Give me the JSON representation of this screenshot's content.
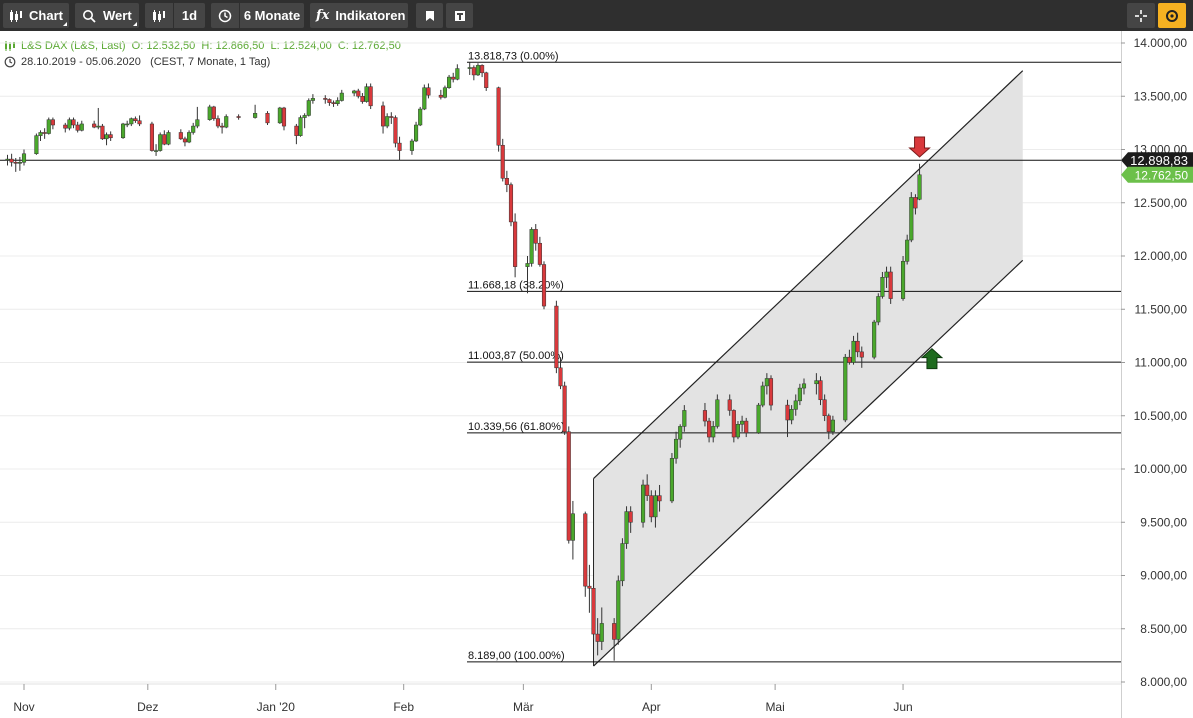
{
  "toolbar": {
    "chart_label": "Chart",
    "value_label": "Wert",
    "interval_label": "1d",
    "range_label": "6 Monate",
    "indicators_label": "Indikatoren"
  },
  "info": {
    "instrument": "L&S DAX (L&S, Last)",
    "open": "O: 12.532,50",
    "high": "H: 12.866,50",
    "low": "L: 12.524,00",
    "close": "C: 12.762,50",
    "date_range": "28.10.2019 - 05.06.2020",
    "timezone": "(CEST, 7 Monate, 1 Tag)"
  },
  "colors": {
    "toolbar_bg": "#2f2f2f",
    "button_bg": "#454545",
    "bull": "#4aa82c",
    "bear": "#d9393c",
    "info_text": "#5aa832",
    "accent": "#f5b121",
    "last_price_bg": "#1c1c1c",
    "close_price_bg": "#6cc04a",
    "channel_fill": "#e3e3e3"
  },
  "chart_data": {
    "type": "candlestick",
    "y_ticks": [
      "14.000,00",
      "13.500,00",
      "13.000,00",
      "12.500,00",
      "12.000,00",
      "11.500,00",
      "11.000,00",
      "10.500,00",
      "10.000,00",
      "9.500,00",
      "9.000,00",
      "8.500,00",
      "8.000,00"
    ],
    "y_tick_values": [
      14000,
      13500,
      13000,
      12500,
      12000,
      11500,
      11000,
      10500,
      10000,
      9500,
      9000,
      8500,
      8000
    ],
    "ylim": [
      7900,
      14050
    ],
    "x_labels": [
      {
        "label": "Nov",
        "date": "2019-11-01"
      },
      {
        "label": "Dez",
        "date": "2019-12-01"
      },
      {
        "label": "Jan '20",
        "date": "2020-01-01"
      },
      {
        "label": "Feb",
        "date": "2020-02-01"
      },
      {
        "label": "Mär",
        "date": "2020-03-01"
      },
      {
        "label": "Apr",
        "date": "2020-04-01"
      },
      {
        "label": "Mai",
        "date": "2020-05-01"
      },
      {
        "label": "Jun",
        "date": "2020-06-01"
      }
    ],
    "candles": [
      [
        "2019-10-28",
        12900,
        12950,
        12850,
        12910
      ],
      [
        "2019-10-29",
        12910,
        12960,
        12840,
        12880
      ],
      [
        "2019-10-30",
        12880,
        12920,
        12790,
        12870
      ],
      [
        "2019-10-31",
        12870,
        12930,
        12800,
        12880
      ],
      [
        "2019-11-01",
        12880,
        13000,
        12850,
        12960
      ],
      [
        "2019-11-04",
        12960,
        13150,
        12950,
        13130
      ],
      [
        "2019-11-05",
        13130,
        13180,
        13080,
        13160
      ],
      [
        "2019-11-06",
        13160,
        13200,
        13100,
        13150
      ],
      [
        "2019-11-07",
        13150,
        13300,
        13140,
        13280
      ],
      [
        "2019-11-08",
        13280,
        13300,
        13190,
        13230
      ],
      [
        "2019-11-11",
        13230,
        13250,
        13160,
        13200
      ],
      [
        "2019-11-12",
        13200,
        13300,
        13180,
        13280
      ],
      [
        "2019-11-13",
        13280,
        13300,
        13200,
        13230
      ],
      [
        "2019-11-14",
        13230,
        13260,
        13160,
        13180
      ],
      [
        "2019-11-15",
        13180,
        13270,
        13170,
        13240
      ],
      [
        "2019-11-18",
        13240,
        13270,
        13200,
        13210
      ],
      [
        "2019-11-19",
        13210,
        13390,
        13190,
        13220
      ],
      [
        "2019-11-20",
        13220,
        13240,
        13090,
        13100
      ],
      [
        "2019-11-21",
        13100,
        13160,
        13040,
        13140
      ],
      [
        "2019-11-22",
        13140,
        13170,
        13080,
        13110
      ],
      [
        "2019-11-25",
        13110,
        13250,
        13100,
        13240
      ],
      [
        "2019-11-26",
        13240,
        13270,
        13210,
        13240
      ],
      [
        "2019-11-27",
        13240,
        13300,
        13220,
        13290
      ],
      [
        "2019-11-28",
        13290,
        13310,
        13250,
        13270
      ],
      [
        "2019-11-29",
        13270,
        13320,
        13220,
        13240
      ],
      [
        "2019-12-02",
        13240,
        13260,
        12980,
        12990
      ],
      [
        "2019-12-03",
        12990,
        13050,
        12940,
        12990
      ],
      [
        "2019-12-04",
        12990,
        13160,
        12980,
        13140
      ],
      [
        "2019-12-05",
        13140,
        13180,
        13040,
        13050
      ],
      [
        "2019-12-06",
        13050,
        13180,
        13040,
        13160
      ],
      [
        "2019-12-09",
        13160,
        13190,
        13090,
        13100
      ],
      [
        "2019-12-10",
        13100,
        13120,
        13030,
        13070
      ],
      [
        "2019-12-11",
        13070,
        13180,
        13060,
        13160
      ],
      [
        "2019-12-12",
        13160,
        13250,
        13140,
        13220
      ],
      [
        "2019-12-13",
        13220,
        13400,
        13200,
        13280
      ],
      [
        "2019-12-16",
        13280,
        13420,
        13270,
        13400
      ],
      [
        "2019-12-17",
        13400,
        13410,
        13270,
        13290
      ],
      [
        "2019-12-18",
        13290,
        13320,
        13200,
        13220
      ],
      [
        "2019-12-19",
        13220,
        13250,
        13150,
        13210
      ],
      [
        "2019-12-20",
        13210,
        13330,
        13200,
        13310
      ],
      [
        "2019-12-23",
        13310,
        13330,
        13280,
        13300
      ],
      [
        "2019-12-27",
        13300,
        13420,
        13290,
        13340
      ],
      [
        "2019-12-30",
        13340,
        13360,
        13230,
        13250
      ],
      [
        "2020-01-02",
        13250,
        13400,
        13240,
        13390
      ],
      [
        "2020-01-03",
        13390,
        13400,
        13180,
        13220
      ],
      [
        "2020-01-06",
        13220,
        13240,
        13050,
        13130
      ],
      [
        "2020-01-07",
        13130,
        13320,
        13120,
        13300
      ],
      [
        "2020-01-08",
        13300,
        13340,
        13200,
        13320
      ],
      [
        "2020-01-09",
        13320,
        13480,
        13310,
        13460
      ],
      [
        "2020-01-10",
        13460,
        13520,
        13430,
        13480
      ],
      [
        "2020-01-13",
        13480,
        13510,
        13430,
        13470
      ],
      [
        "2020-01-14",
        13470,
        13480,
        13410,
        13440
      ],
      [
        "2020-01-15",
        13440,
        13460,
        13400,
        13430
      ],
      [
        "2020-01-16",
        13430,
        13490,
        13410,
        13460
      ],
      [
        "2020-01-17",
        13460,
        13560,
        13450,
        13530
      ],
      [
        "2020-01-20",
        13530,
        13560,
        13500,
        13550
      ],
      [
        "2020-01-21",
        13550,
        13570,
        13480,
        13500
      ],
      [
        "2020-01-22",
        13500,
        13530,
        13430,
        13450
      ],
      [
        "2020-01-23",
        13450,
        13620,
        13440,
        13590
      ],
      [
        "2020-01-24",
        13590,
        13620,
        13380,
        13410
      ],
      [
        "2020-01-27",
        13410,
        13450,
        13150,
        13220
      ],
      [
        "2020-01-28",
        13220,
        13340,
        13200,
        13310
      ],
      [
        "2020-01-29",
        13310,
        13350,
        13240,
        13300
      ],
      [
        "2020-01-30",
        13300,
        13320,
        13020,
        13060
      ],
      [
        "2020-01-31",
        13060,
        13120,
        12900,
        12990
      ],
      [
        "2020-02-03",
        12990,
        13100,
        12950,
        13080
      ],
      [
        "2020-02-04",
        13080,
        13260,
        13070,
        13230
      ],
      [
        "2020-02-05",
        13230,
        13400,
        13220,
        13380
      ],
      [
        "2020-02-06",
        13380,
        13610,
        13370,
        13580
      ],
      [
        "2020-02-07",
        13580,
        13620,
        13480,
        13510
      ],
      [
        "2020-02-10",
        13510,
        13560,
        13470,
        13490
      ],
      [
        "2020-02-11",
        13490,
        13600,
        13480,
        13580
      ],
      [
        "2020-02-12",
        13580,
        13700,
        13570,
        13680
      ],
      [
        "2020-02-13",
        13680,
        13720,
        13630,
        13660
      ],
      [
        "2020-02-14",
        13660,
        13800,
        13650,
        13760
      ],
      [
        "2020-02-17",
        13760,
        13820,
        13700,
        13770
      ],
      [
        "2020-02-18",
        13770,
        13790,
        13650,
        13700
      ],
      [
        "2020-02-19",
        13700,
        13810,
        13690,
        13790
      ],
      [
        "2020-02-20",
        13790,
        13800,
        13680,
        13720
      ],
      [
        "2020-02-21",
        13720,
        13730,
        13550,
        13580
      ],
      [
        "2020-02-24",
        13580,
        13590,
        12980,
        13040
      ],
      [
        "2020-02-25",
        13040,
        13100,
        12700,
        12730
      ],
      [
        "2020-02-26",
        12730,
        12800,
        12600,
        12670
      ],
      [
        "2020-02-27",
        12670,
        12690,
        12280,
        12320
      ],
      [
        "2020-02-28",
        12320,
        12400,
        11800,
        11900
      ],
      [
        "2020-03-02",
        11900,
        12000,
        11650,
        11930
      ],
      [
        "2020-03-03",
        11930,
        12270,
        11900,
        12250
      ],
      [
        "2020-03-04",
        12250,
        12300,
        12050,
        12120
      ],
      [
        "2020-03-05",
        12120,
        12180,
        11900,
        11920
      ],
      [
        "2020-03-06",
        11920,
        11950,
        11500,
        11530
      ],
      [
        "2020-03-09",
        11530,
        11580,
        10900,
        10950
      ],
      [
        "2020-03-10",
        10950,
        11050,
        10750,
        10780
      ],
      [
        "2020-03-11",
        10780,
        10820,
        10320,
        10350
      ],
      [
        "2020-03-12",
        10350,
        10400,
        9300,
        9330
      ],
      [
        "2020-03-13",
        9330,
        9700,
        9150,
        9580
      ],
      [
        "2020-03-16",
        9580,
        9600,
        8800,
        8900
      ],
      [
        "2020-03-17",
        8900,
        9100,
        8650,
        8880
      ],
      [
        "2020-03-18",
        8880,
        8950,
        8400,
        8450
      ],
      [
        "2020-03-19",
        8450,
        8600,
        8250,
        8380
      ],
      [
        "2020-03-20",
        8380,
        8700,
        8300,
        8550
      ],
      [
        "2020-03-23",
        8550,
        8600,
        8200,
        8400
      ],
      [
        "2020-03-24",
        8400,
        9000,
        8350,
        8950
      ],
      [
        "2020-03-25",
        8950,
        9350,
        8900,
        9300
      ],
      [
        "2020-03-26",
        9300,
        9650,
        9250,
        9600
      ],
      [
        "2020-03-27",
        9600,
        9650,
        9400,
        9500
      ],
      [
        "2020-03-30",
        9500,
        9900,
        9450,
        9850
      ],
      [
        "2020-03-31",
        9850,
        9950,
        9700,
        9750
      ],
      [
        "2020-04-01",
        9750,
        9800,
        9500,
        9550
      ],
      [
        "2020-04-02",
        9550,
        9800,
        9450,
        9750
      ],
      [
        "2020-04-03",
        9750,
        9850,
        9600,
        9700
      ],
      [
        "2020-04-06",
        9700,
        10150,
        9680,
        10100
      ],
      [
        "2020-04-07",
        10100,
        10350,
        10050,
        10280
      ],
      [
        "2020-04-08",
        10280,
        10420,
        10200,
        10400
      ],
      [
        "2020-04-09",
        10400,
        10600,
        10350,
        10550
      ],
      [
        "2020-04-14",
        10550,
        10620,
        10400,
        10450
      ],
      [
        "2020-04-15",
        10450,
        10480,
        10250,
        10300
      ],
      [
        "2020-04-16",
        10300,
        10450,
        10250,
        10400
      ],
      [
        "2020-04-17",
        10400,
        10700,
        10380,
        10650
      ],
      [
        "2020-04-20",
        10650,
        10700,
        10500,
        10550
      ],
      [
        "2020-04-21",
        10550,
        10560,
        10250,
        10300
      ],
      [
        "2020-04-22",
        10300,
        10450,
        10280,
        10420
      ],
      [
        "2020-04-23",
        10420,
        10500,
        10350,
        10450
      ],
      [
        "2020-04-24",
        10450,
        10480,
        10300,
        10340
      ],
      [
        "2020-04-27",
        10340,
        10620,
        10330,
        10600
      ],
      [
        "2020-04-28",
        10600,
        10820,
        10580,
        10780
      ],
      [
        "2020-04-29",
        10780,
        10900,
        10700,
        10850
      ],
      [
        "2020-04-30",
        10850,
        10880,
        10550,
        10600
      ],
      [
        "2020-05-04",
        10600,
        10650,
        10300,
        10460
      ],
      [
        "2020-05-05",
        10460,
        10600,
        10420,
        10560
      ],
      [
        "2020-05-06",
        10560,
        10700,
        10500,
        10640
      ],
      [
        "2020-05-07",
        10640,
        10800,
        10600,
        10760
      ],
      [
        "2020-05-08",
        10760,
        10850,
        10700,
        10800
      ],
      [
        "2020-05-11",
        10800,
        10900,
        10700,
        10830
      ],
      [
        "2020-05-12",
        10830,
        10870,
        10600,
        10650
      ],
      [
        "2020-05-13",
        10650,
        10700,
        10450,
        10500
      ],
      [
        "2020-05-14",
        10500,
        10520,
        10280,
        10350
      ],
      [
        "2020-05-15",
        10350,
        10500,
        10320,
        10460
      ],
      [
        "2020-05-18",
        10460,
        11080,
        10440,
        11050
      ],
      [
        "2020-05-19",
        11050,
        11120,
        10980,
        11000
      ],
      [
        "2020-05-20",
        11000,
        11250,
        10980,
        11200
      ],
      [
        "2020-05-21",
        11200,
        11280,
        11050,
        11100
      ],
      [
        "2020-05-22",
        11100,
        11150,
        10950,
        11050
      ],
      [
        "2020-05-25",
        11050,
        11400,
        11030,
        11380
      ],
      [
        "2020-05-26",
        11380,
        11650,
        11350,
        11620
      ],
      [
        "2020-05-27",
        11620,
        11850,
        11600,
        11800
      ],
      [
        "2020-05-28",
        11800,
        11900,
        11700,
        11850
      ],
      [
        "2020-05-29",
        11850,
        11900,
        11550,
        11600
      ],
      [
        "2020-06-01",
        11600,
        12000,
        11580,
        11950
      ],
      [
        "2020-06-02",
        11950,
        12200,
        11920,
        12150
      ],
      [
        "2020-06-03",
        12150,
        12600,
        12130,
        12550
      ],
      [
        "2020-06-04",
        12550,
        12580,
        12390,
        12450
      ],
      [
        "2020-06-05",
        12532.5,
        12866.5,
        12524,
        12762.5
      ]
    ],
    "fibonacci": [
      {
        "label": "13.818,73 (0.00%)",
        "value": 13818.73
      },
      {
        "label": "11.668,18 (38.20%)",
        "value": 11668.18
      },
      {
        "label": "11.003,87 (50.00%)",
        "value": 11003.87
      },
      {
        "label": "10.339,56 (61.80%)",
        "value": 10339.56
      },
      {
        "label": "8.189,00 (100.00%)",
        "value": 8189.0
      }
    ],
    "horizontal_line": 12898.83,
    "channel": {
      "upper": [
        [
          "2020-03-18",
          9910
        ],
        [
          "2020-06-30",
          13740
        ]
      ],
      "lower": [
        [
          "2020-03-18",
          8150
        ],
        [
          "2020-06-30",
          11960
        ]
      ]
    },
    "last_price_label": "12.898,83",
    "close_price_label": "12.762,50",
    "arrows": [
      {
        "type": "sell",
        "date": "2020-06-05",
        "price": 12930
      },
      {
        "type": "buy",
        "date": "2020-06-08",
        "price": 11130
      }
    ]
  }
}
